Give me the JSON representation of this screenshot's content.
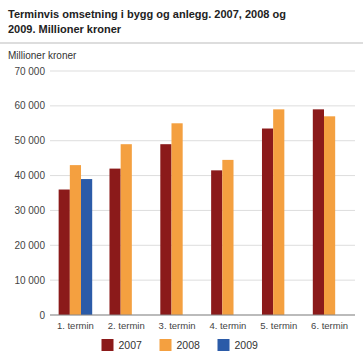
{
  "chart_data": {
    "type": "bar",
    "title": "Terminvis omsetning i bygg og anlegg. 2007, 2008 og\n2009. Millioner kroner",
    "ylabel": "Millioner kroner",
    "categories": [
      "1. termin",
      "2. termin",
      "3. termin",
      "4. termin",
      "5. termin",
      "6. termin"
    ],
    "series": [
      {
        "name": "2007",
        "color": "#8B1A1A",
        "values": [
          36000,
          42000,
          49000,
          41500,
          53500,
          59000
        ]
      },
      {
        "name": "2008",
        "color": "#F4A040",
        "values": [
          43000,
          49000,
          55000,
          44500,
          59000,
          57000
        ]
      },
      {
        "name": "2009",
        "color": "#2B5BA8",
        "values": [
          39000,
          null,
          null,
          null,
          null,
          null
        ]
      }
    ],
    "ylim": [
      0,
      70000
    ],
    "yticks": [
      0,
      {
        "value": 10000,
        "label": "10 000"
      },
      {
        "value": 20000,
        "label": "20 000"
      },
      {
        "value": 30000,
        "label": "30 000"
      },
      {
        "value": 40000,
        "label": "40 000"
      },
      {
        "value": 50000,
        "label": "50 000"
      },
      {
        "value": 60000,
        "label": "60 000"
      },
      {
        "value": 70000,
        "label": "70 000"
      }
    ],
    "grid": true,
    "legend": "bottom"
  }
}
